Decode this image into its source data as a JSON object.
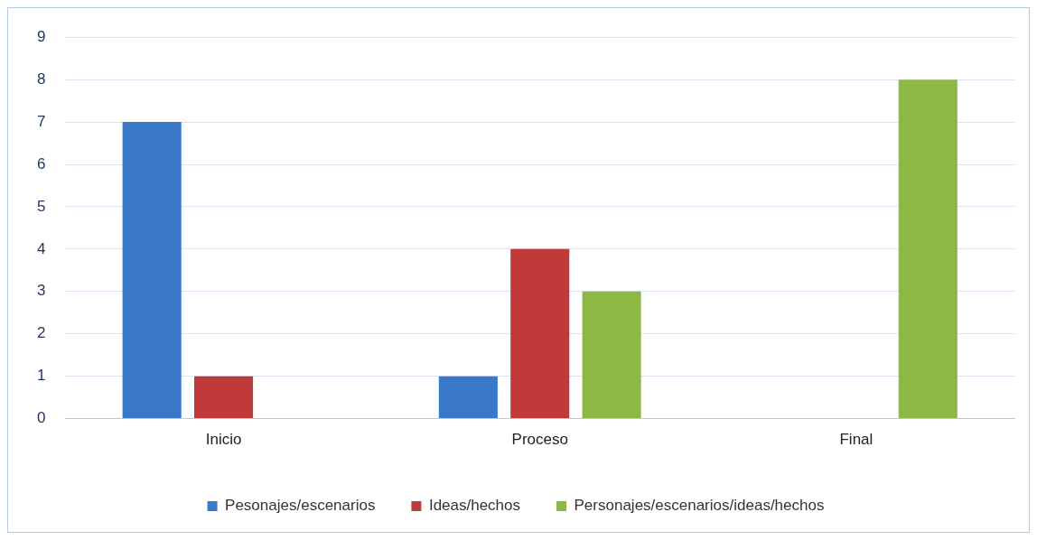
{
  "chart_data": {
    "type": "bar",
    "categories": [
      "Inicio",
      "Proceso",
      "Final"
    ],
    "series": [
      {
        "name": "Pesonajes/escenarios",
        "color": "#3a78c8",
        "values": [
          7,
          1,
          0
        ]
      },
      {
        "name": "Ideas/hechos",
        "color": "#c0393b",
        "values": [
          1,
          4,
          0
        ]
      },
      {
        "name": "Personajes/escenarios/ideas/hechos",
        "color": "#8db843",
        "values": [
          0,
          3,
          8
        ]
      }
    ],
    "ylim": [
      0,
      9
    ],
    "yticks": [
      0,
      1,
      2,
      3,
      4,
      5,
      6,
      7,
      8,
      9
    ],
    "grid": "y",
    "legend": "bottom"
  }
}
